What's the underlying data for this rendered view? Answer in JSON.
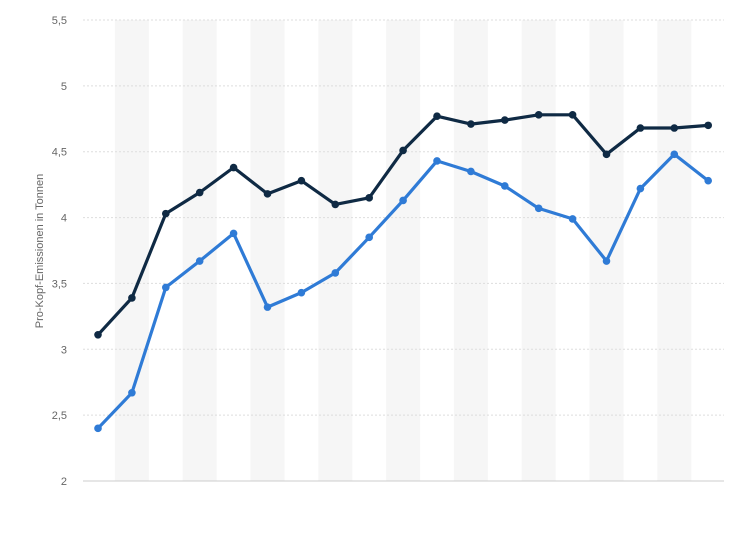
{
  "chart_data": {
    "type": "line",
    "title": "",
    "xlabel": "",
    "ylabel": "Pro-Kopf-Emissionen in Tonnen",
    "ylim": [
      2,
      5.5
    ],
    "y_ticks": [
      2,
      2.5,
      3,
      3.5,
      4,
      4.5,
      5,
      5.5
    ],
    "y_tick_labels": [
      "2",
      "2,5",
      "3",
      "3,5",
      "4",
      "4,5",
      "5",
      "5,5"
    ],
    "grid": true,
    "legend": "none",
    "series": [
      {
        "color": "#0f2a44",
        "values": [
          3.11,
          3.39,
          4.03,
          4.19,
          4.38,
          4.18,
          4.28,
          4.1,
          4.15,
          4.51,
          4.77,
          4.71,
          4.74,
          4.78,
          4.78,
          4.48,
          4.68,
          4.68,
          4.7
        ]
      },
      {
        "color": "#2f7bd6",
        "values": [
          2.4,
          2.67,
          3.47,
          3.67,
          3.88,
          3.32,
          3.43,
          3.58,
          3.85,
          4.13,
          4.43,
          4.35,
          4.24,
          4.07,
          3.99,
          3.67,
          4.22,
          4.48,
          4.28
        ]
      }
    ]
  }
}
